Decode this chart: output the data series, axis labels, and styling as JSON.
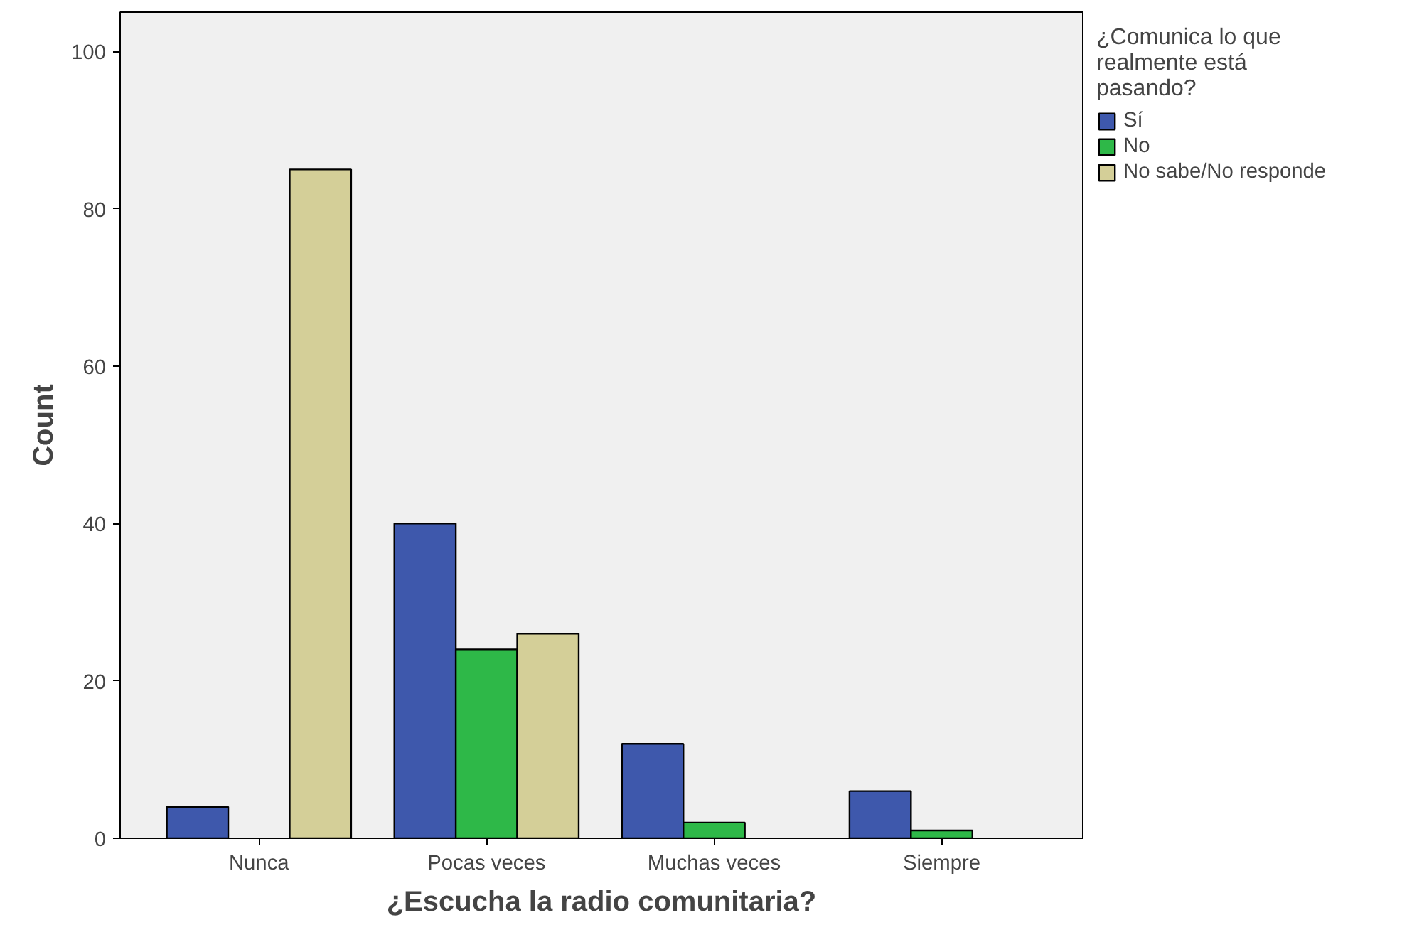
{
  "chart_data": {
    "type": "bar",
    "xlabel": "¿Escucha la radio comunitaria?",
    "ylabel": "Count",
    "legend_title": "¿Comunica lo que realmente está pasando?",
    "categories": [
      "Nunca",
      "Pocas veces",
      "Muchas veces",
      "Siempre"
    ],
    "series": [
      {
        "name": "Sí",
        "color": "#3e58ac",
        "values": [
          4,
          40,
          12,
          6
        ]
      },
      {
        "name": "No",
        "color": "#2eb848",
        "values": [
          null,
          24,
          2,
          1
        ]
      },
      {
        "name": "No sabe/No responde",
        "color": "#d4cf98",
        "values": [
          85,
          26,
          null,
          null
        ]
      }
    ],
    "ylim": [
      0,
      105
    ],
    "yticks": [
      0,
      20,
      40,
      60,
      80,
      100
    ],
    "grid": false,
    "legend": "right"
  }
}
